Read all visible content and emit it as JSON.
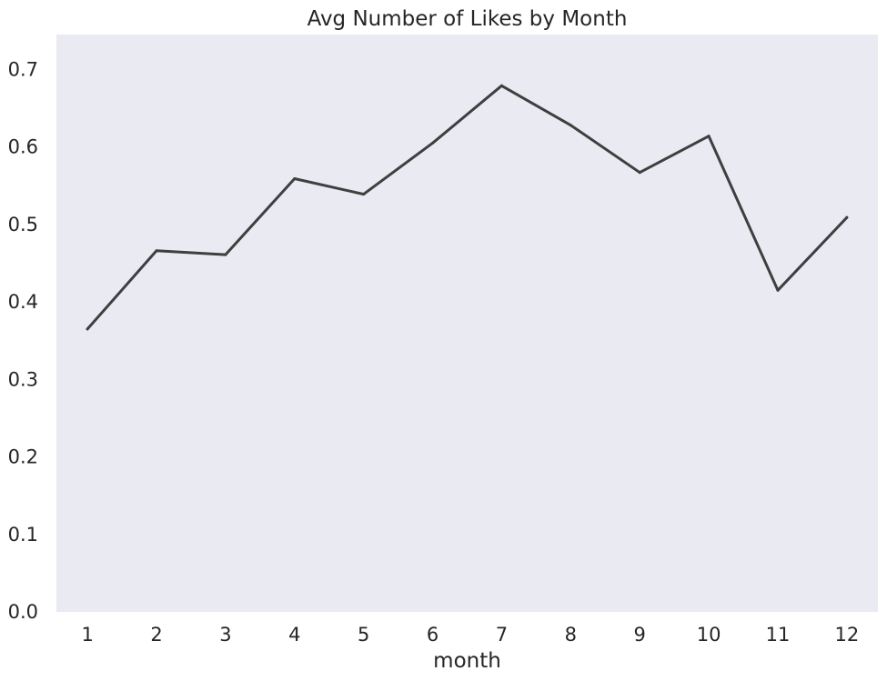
{
  "chart_data": {
    "type": "line",
    "title": "Avg Number of Likes by Month",
    "xlabel": "month",
    "ylabel": "",
    "categories": [
      "1",
      "2",
      "3",
      "4",
      "5",
      "6",
      "7",
      "8",
      "9",
      "10",
      "11",
      "12"
    ],
    "x": [
      1,
      2,
      3,
      4,
      5,
      6,
      7,
      8,
      9,
      10,
      11,
      12
    ],
    "series": [
      {
        "values": [
          0.365,
          0.466,
          0.461,
          0.559,
          0.539,
          0.605,
          0.679,
          0.628,
          0.567,
          0.614,
          0.415,
          0.509
        ]
      }
    ],
    "yticks": [
      0.0,
      0.1,
      0.2,
      0.3,
      0.4,
      0.5,
      0.6,
      0.7
    ],
    "ytick_labels": [
      "0.0",
      "0.1",
      "0.2",
      "0.3",
      "0.4",
      "0.5",
      "0.6",
      "0.7"
    ],
    "ylim": [
      0.0,
      0.745
    ],
    "xlim": [
      0.55,
      12.45
    ],
    "grid": false,
    "colors": {
      "plot_background": "#EAEAF2",
      "line": "#3F3F3F",
      "text": "#262626"
    }
  }
}
